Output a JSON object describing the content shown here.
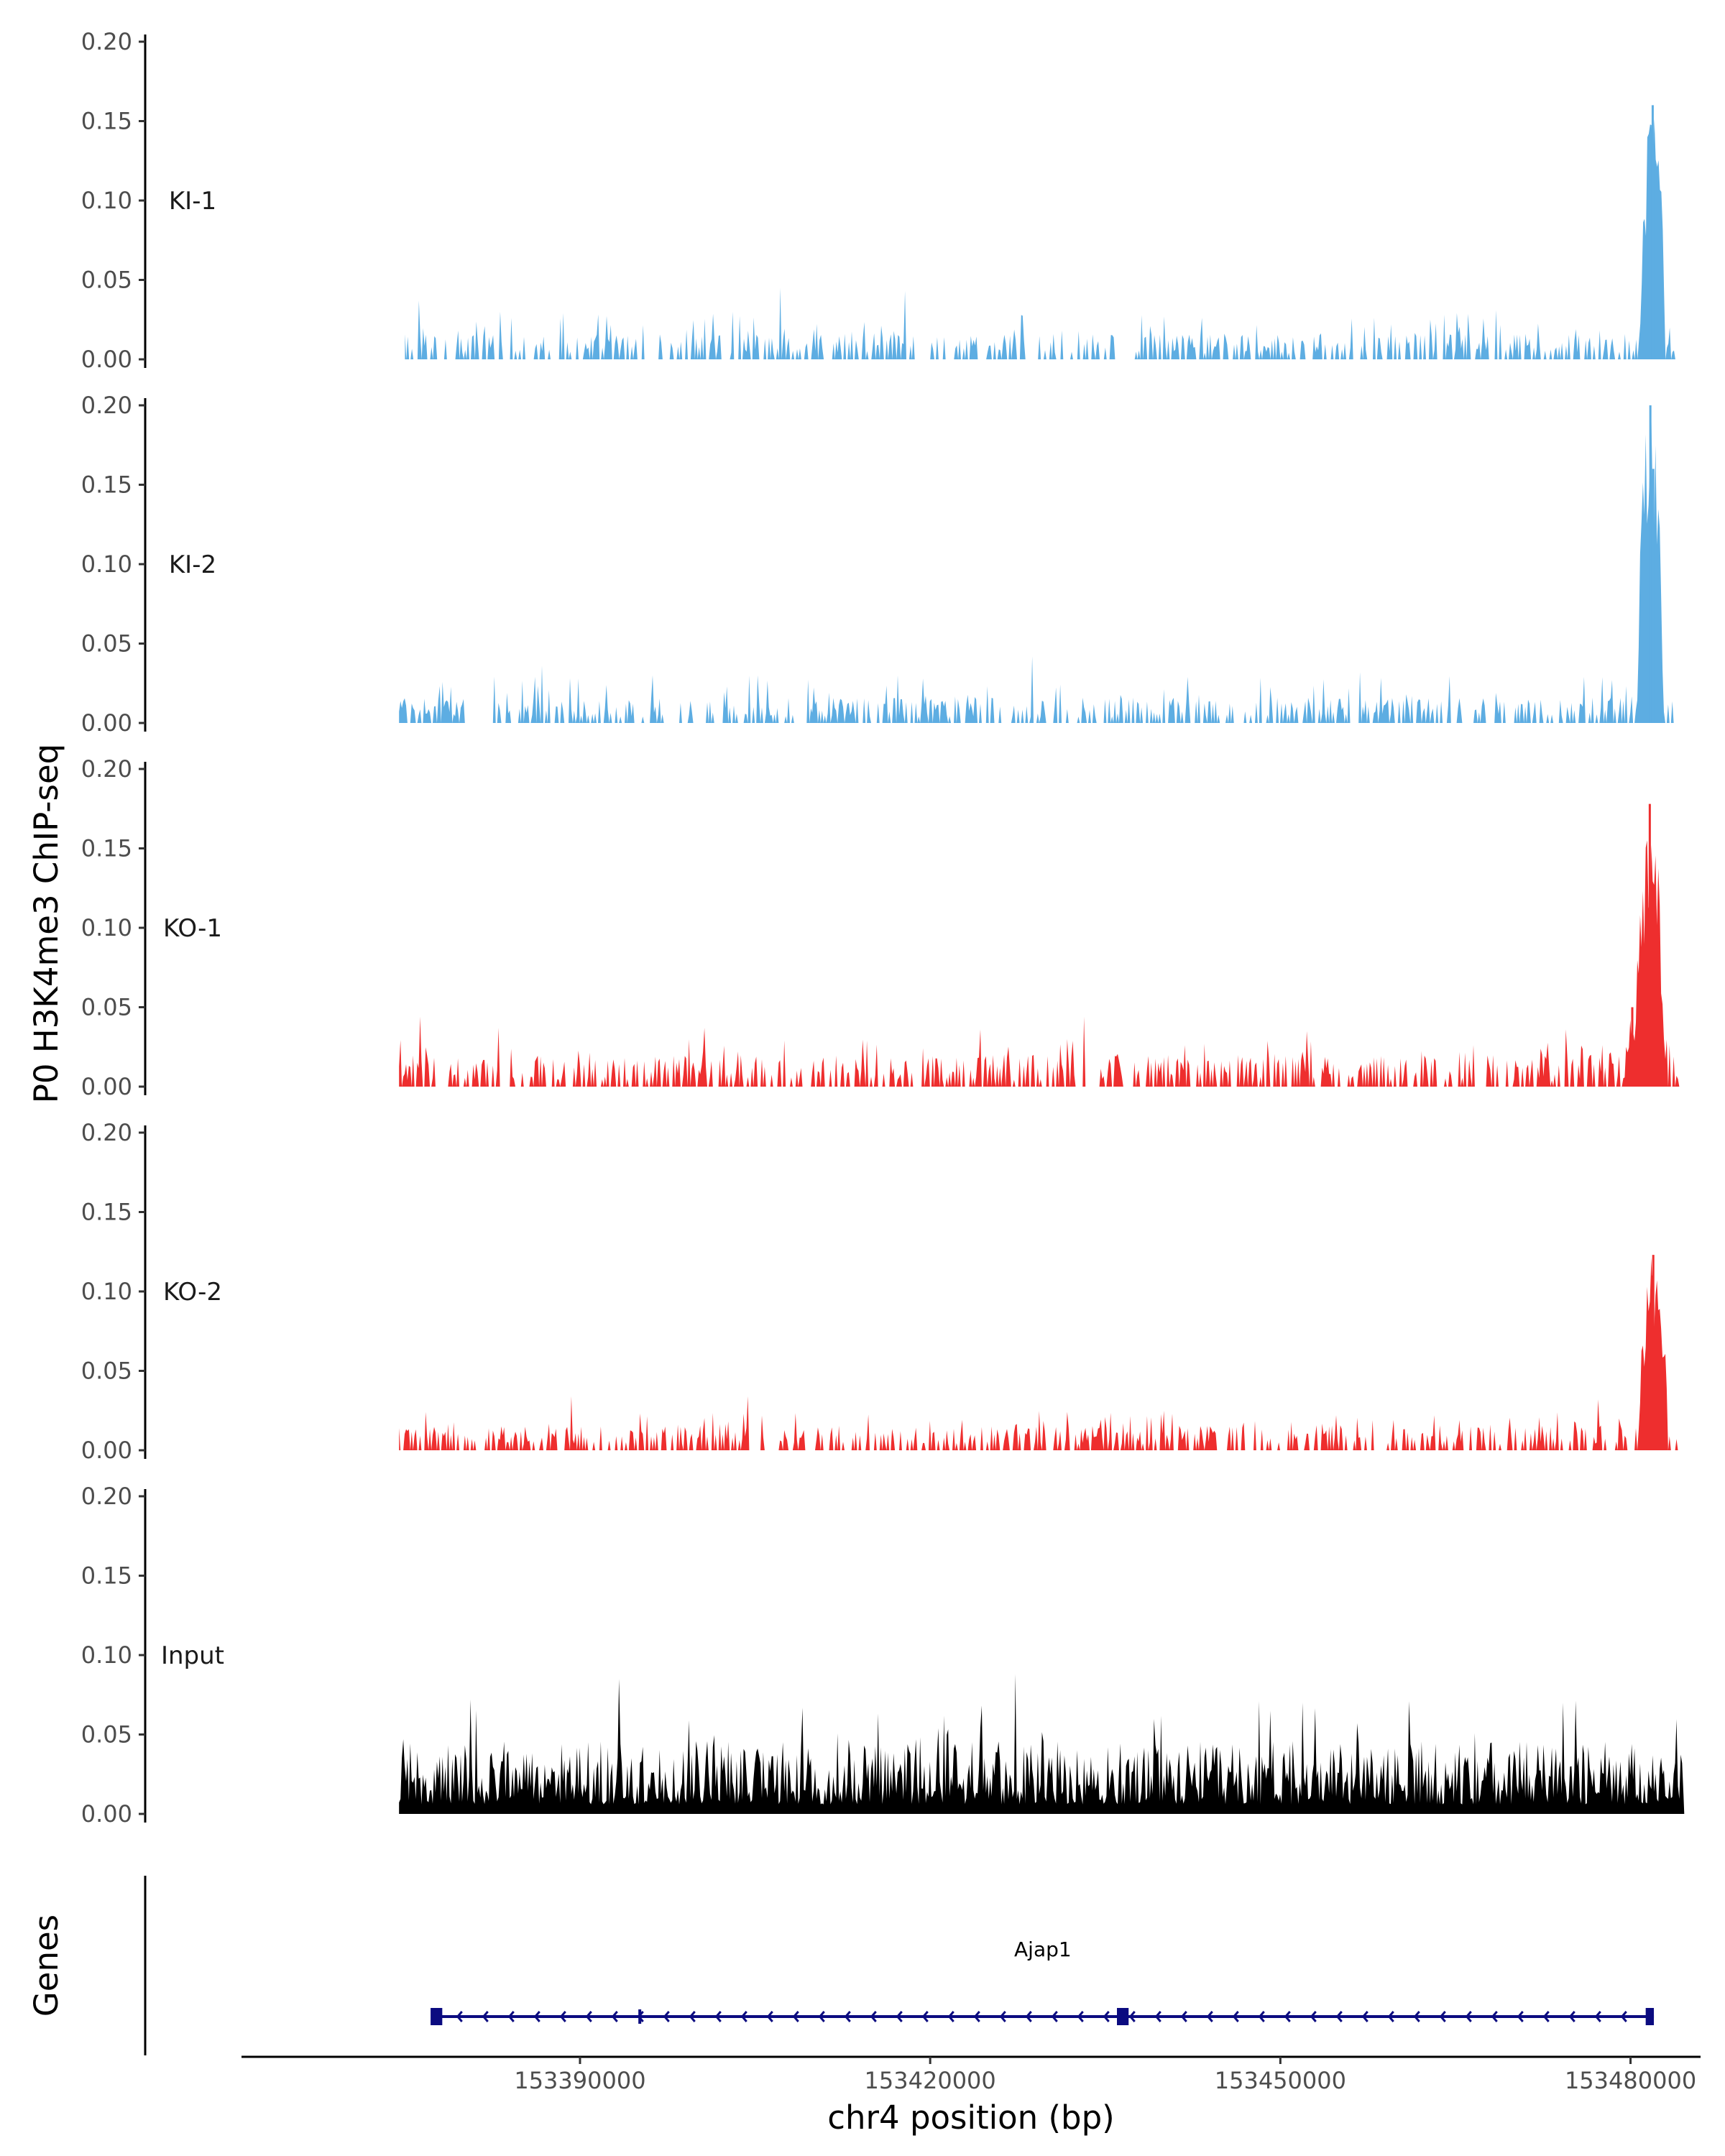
{
  "chart_data": {
    "type": "area",
    "title": "",
    "ylabel": "P0 H3K4me3 ChIP-seq",
    "xlabel": "chr4 position (bp)",
    "xlim": [
      153361000,
      153486000
    ],
    "ylim": [
      0,
      0.2
    ],
    "y_ticks": [
      0.0,
      0.05,
      0.1,
      0.15,
      0.2
    ],
    "y_tick_labels": [
      "0.00",
      "0.05",
      "0.10",
      "0.15",
      "0.20"
    ],
    "x_ticks": [
      153390000,
      153420000,
      153450000,
      153480000
    ],
    "x_tick_labels": [
      "153390000",
      "153420000",
      "153450000",
      "153480000"
    ],
    "tracks": [
      {
        "name": "KI-1",
        "color": "#5DADE2",
        "noise_level": 0.012,
        "spike_level": 0.03,
        "data_start": 153375000,
        "data_end": 153484000,
        "gaps": [
          [
            153395500,
            153396400
          ],
          [
            153410800,
            153411600
          ],
          [
            153418600,
            153420000
          ],
          [
            153424200,
            153424900
          ],
          [
            153431400,
            153432100
          ],
          [
            153436000,
            153437400
          ]
        ],
        "peaks": [
          {
            "start": 153480800,
            "end": 153483000,
            "height": 0.16
          },
          {
            "start": 153481500,
            "end": 153482400,
            "height": 0.135
          }
        ],
        "spikes": [
          {
            "x": 153376200,
            "value": 0.037
          },
          {
            "x": 153383200,
            "value": 0.03
          },
          {
            "x": 153407200,
            "value": 0.045
          },
          {
            "x": 153417800,
            "value": 0.043
          },
          {
            "x": 153459300,
            "value": 0.046
          },
          {
            "x": 153468500,
            "value": 0.031
          },
          {
            "x": 153483400,
            "value": 0.02
          }
        ]
      },
      {
        "name": "KI-2",
        "color": "#5DADE2",
        "noise_level": 0.012,
        "spike_level": 0.03,
        "data_start": 153374500,
        "data_end": 153484000,
        "gaps": [
          [
            153380200,
            153382100
          ],
          [
            153394600,
            153395300
          ],
          [
            153469200,
            153470100
          ]
        ],
        "peaks": [
          {
            "start": 153480600,
            "end": 153482800,
            "height": 0.2
          },
          {
            "start": 153481600,
            "end": 153482300,
            "height": 0.16
          }
        ],
        "spikes": [
          {
            "x": 153386700,
            "value": 0.036
          },
          {
            "x": 153405200,
            "value": 0.03
          },
          {
            "x": 153417200,
            "value": 0.03
          },
          {
            "x": 153428700,
            "value": 0.042
          },
          {
            "x": 153456800,
            "value": 0.032
          },
          {
            "x": 153476000,
            "value": 0.029
          }
        ]
      },
      {
        "name": "KO-1",
        "color": "#EE2E2E",
        "noise_level": 0.016,
        "spike_level": 0.03,
        "data_start": 153374500,
        "data_end": 153484200,
        "gaps": [
          [
            153377800,
            153378600
          ],
          [
            153418500,
            153419300
          ],
          [
            153460800,
            153461400
          ]
        ],
        "peaks": [
          {
            "start": 153480400,
            "end": 153482900,
            "height": 0.178
          },
          {
            "start": 153479500,
            "end": 153480800,
            "height": 0.05
          }
        ],
        "spikes": [
          {
            "x": 153376300,
            "value": 0.044
          },
          {
            "x": 153383000,
            "value": 0.037
          },
          {
            "x": 153400700,
            "value": 0.037
          },
          {
            "x": 153424300,
            "value": 0.036
          },
          {
            "x": 153433200,
            "value": 0.044
          },
          {
            "x": 153452300,
            "value": 0.035
          },
          {
            "x": 153474500,
            "value": 0.036
          },
          {
            "x": 153484000,
            "value": 0.038
          }
        ]
      },
      {
        "name": "KO-2",
        "color": "#EE2E2E",
        "noise_level": 0.012,
        "spike_level": 0.025,
        "data_start": 153374500,
        "data_end": 153484200,
        "gaps": [],
        "peaks": [
          {
            "start": 153480700,
            "end": 153483200,
            "height": 0.123
          },
          {
            "start": 153481300,
            "end": 153482500,
            "height": 0.11
          }
        ],
        "spikes": [
          {
            "x": 153389300,
            "value": 0.034
          },
          {
            "x": 153404400,
            "value": 0.034
          },
          {
            "x": 153466000,
            "value": 0.03
          },
          {
            "x": 153477200,
            "value": 0.032
          },
          {
            "x": 153479200,
            "value": 0.026
          }
        ]
      },
      {
        "name": "Input",
        "color": "#000000",
        "noise_level": 0.04,
        "spike_level": 0.065,
        "data_start": 153374500,
        "data_end": 153484600,
        "gaps": [],
        "peaks": [],
        "spikes": [
          {
            "x": 153392200,
            "value": 0.088
          },
          {
            "x": 153393300,
            "value": 0.085
          },
          {
            "x": 153427300,
            "value": 0.088
          },
          {
            "x": 153380600,
            "value": 0.072
          },
          {
            "x": 153448200,
            "value": 0.071
          },
          {
            "x": 153461000,
            "value": 0.071
          },
          {
            "x": 153474200,
            "value": 0.07
          }
        ]
      }
    ],
    "genes": {
      "label": "Genes",
      "items": [
        {
          "name": "Ajap1",
          "strand": "-",
          "start": 153377300,
          "end": 153482000,
          "exons": [
            [
              153377200,
              153378200
            ],
            [
              153395000,
              153395200
            ],
            [
              153436000,
              153437000
            ],
            [
              153481300,
              153482000
            ]
          ]
        }
      ]
    }
  }
}
